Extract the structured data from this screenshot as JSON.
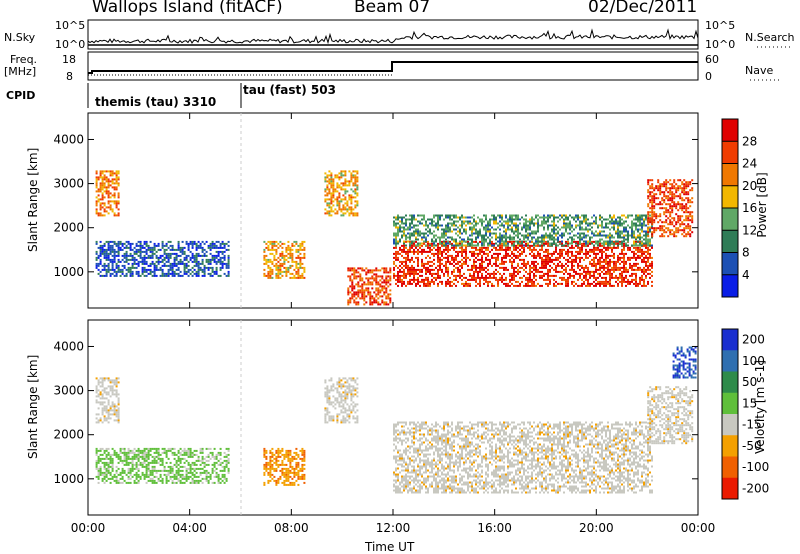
{
  "header": {
    "site": "Wallops Island (fitACF)",
    "beam": "Beam 07",
    "date": "02/Dec/2011"
  },
  "aux": {
    "nsky_label": "N.Sky",
    "nsky_ticks": [
      "10^5",
      "10^0"
    ],
    "nsearch_label": "N.Search",
    "nsearch_ticks": [
      "10^5",
      "10^0"
    ],
    "freq_label_1": "Freq.",
    "freq_label_2": "[MHz]",
    "freq_ticks": [
      "18",
      "8"
    ],
    "nave_label": "Nave",
    "nave_ticks": [
      "60",
      "0"
    ],
    "cpid_label": "CPID",
    "cpid_segments": [
      "themis (tau) 3310",
      "tau (fast) 503"
    ]
  },
  "chart_data": [
    {
      "type": "heatmap",
      "title": "",
      "xlabel": "Time UT",
      "ylabel": "Slant Range [km]",
      "x_ticks": [
        "00:00",
        "04:00",
        "08:00",
        "12:00",
        "16:00",
        "20:00",
        "00:00"
      ],
      "y_ticks": [
        "1000",
        "2000",
        "3000",
        "4000"
      ],
      "xlim": [
        0,
        24
      ],
      "ylim": [
        180,
        4600
      ],
      "colorbar": {
        "label": "Power [dB]",
        "ticks": [
          "4",
          "8",
          "12",
          "16",
          "20",
          "24",
          "28"
        ],
        "colors": [
          "#0a1ee6",
          "#1c50b4",
          "#2f7c57",
          "#60a866",
          "#f2b700",
          "#f07800",
          "#f03c00",
          "#e00000"
        ]
      },
      "regions": [
        {
          "t": [
            0.3,
            1.2
          ],
          "range": [
            2300,
            3300
          ],
          "power": 22
        },
        {
          "t": [
            0.3,
            5.5
          ],
          "range": [
            900,
            1700
          ],
          "power": 6
        },
        {
          "t": [
            6.9,
            8.5
          ],
          "range": [
            850,
            1700
          ],
          "power": 20
        },
        {
          "t": [
            9.3,
            10.6
          ],
          "range": [
            2300,
            3300
          ],
          "power": 20
        },
        {
          "t": [
            10.2,
            11.9
          ],
          "range": [
            250,
            1100
          ],
          "power": 26
        },
        {
          "t": [
            12.0,
            22.2
          ],
          "range": [
            700,
            1700
          ],
          "power": 28
        },
        {
          "t": [
            12.0,
            22.2
          ],
          "range": [
            1600,
            2300
          ],
          "power": 12
        },
        {
          "t": [
            22.0,
            23.8
          ],
          "range": [
            1800,
            3100
          ],
          "power": 26
        }
      ]
    },
    {
      "type": "heatmap",
      "title": "",
      "xlabel": "Time UT",
      "ylabel": "Slant Range [km]",
      "x_ticks": [
        "00:00",
        "04:00",
        "08:00",
        "12:00",
        "16:00",
        "20:00",
        "00:00"
      ],
      "y_ticks": [
        "1000",
        "2000",
        "3000",
        "4000"
      ],
      "xlim": [
        0,
        24
      ],
      "ylim": [
        180,
        4600
      ],
      "colorbar": {
        "label": "Velocity [m s-1]",
        "ticks": [
          "200",
          "100",
          "50",
          "15",
          "-15",
          "-50",
          "-100",
          "-200"
        ],
        "colors": [
          "#1a2fd0",
          "#2f6fb0",
          "#2e8b4a",
          "#5fbf3a",
          "#c8c8c0",
          "#f4a000",
          "#f06000",
          "#ea1a00"
        ]
      },
      "regions": [
        {
          "t": [
            0.3,
            1.2
          ],
          "range": [
            2300,
            3300
          ],
          "velocity": 0
        },
        {
          "t": [
            0.3,
            5.5
          ],
          "range": [
            900,
            1700
          ],
          "velocity": 40
        },
        {
          "t": [
            6.9,
            8.5
          ],
          "range": [
            850,
            1700
          ],
          "velocity": -40
        },
        {
          "t": [
            9.3,
            10.6
          ],
          "range": [
            2300,
            3300
          ],
          "velocity": 0
        },
        {
          "t": [
            12.0,
            22.2
          ],
          "range": [
            700,
            2300
          ],
          "velocity": 0
        },
        {
          "t": [
            22.0,
            23.8
          ],
          "range": [
            1800,
            3100
          ],
          "velocity": 0
        },
        {
          "t": [
            23.0,
            23.9
          ],
          "range": [
            3300,
            4000
          ],
          "velocity": 150
        }
      ]
    }
  ]
}
